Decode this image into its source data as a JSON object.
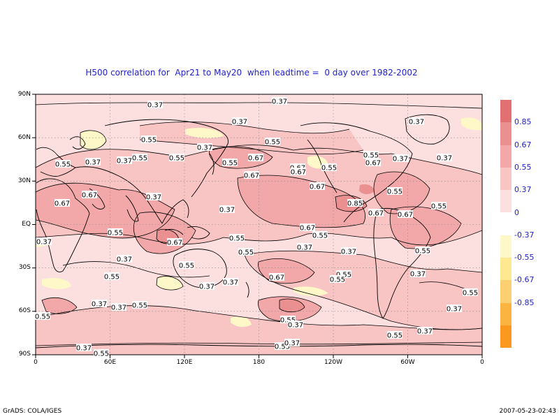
{
  "title": "H500 correlation for  Apr21 to May20  when leadtime =  0 day over 1982-2002",
  "latitude_labels": [
    "90N",
    "60N",
    "30N",
    "EQ",
    "30S",
    "60S",
    "90S"
  ],
  "longitude_labels": [
    "0",
    "60E",
    "120E",
    "180",
    "120W",
    "60W",
    "0"
  ],
  "colorbar": {
    "colors": [
      "#e27070",
      "#ea9090",
      "#f2a8a8",
      "#f8c4c4",
      "#fce0e0",
      "#ffffff",
      "#fef8c8",
      "#fee890",
      "#fcd070",
      "#fcb440",
      "#fa9820"
    ],
    "labels": [
      "0.85",
      "0.67",
      "0.55",
      "0.37",
      "0",
      "-0.37",
      "-0.55",
      "-0.67",
      "-0.85"
    ]
  },
  "contour_labels": [
    "0.37",
    "0.37",
    "0.37",
    "0.37",
    "0.37",
    "0.55",
    "0.37",
    "0.37",
    "0.55",
    "0.55",
    "0.37",
    "0.55",
    "0.55",
    "0.55",
    "0.67",
    "0.67",
    "0.37",
    "0.37",
    "0.67",
    "0.67",
    "0.55",
    "0.55",
    "0.67",
    "0.67",
    "0.55",
    "0.67",
    "0.37",
    "0.37",
    "0.67",
    "0.85",
    "0.55",
    "0.67",
    "0.67",
    "0.37",
    "0.55",
    "0.67",
    "0.55",
    "0.55",
    "0.37",
    "0.67",
    "0.55",
    "0.37",
    "0.55",
    "0.37",
    "0.55",
    "0.55",
    "0.37",
    "0.37",
    "0.37",
    "0.67",
    "0.55",
    "0.55",
    "0.37",
    "0.55",
    "0.37",
    "0.55",
    "0.55",
    "0.55",
    "0.37",
    "0.37",
    "0.55",
    "0.37",
    "0.55",
    "0.37",
    "0.55",
    "0.37"
  ],
  "footer": {
    "left": "GrADS: COLA/IGES",
    "right": "2007-05-23-02:43"
  }
}
